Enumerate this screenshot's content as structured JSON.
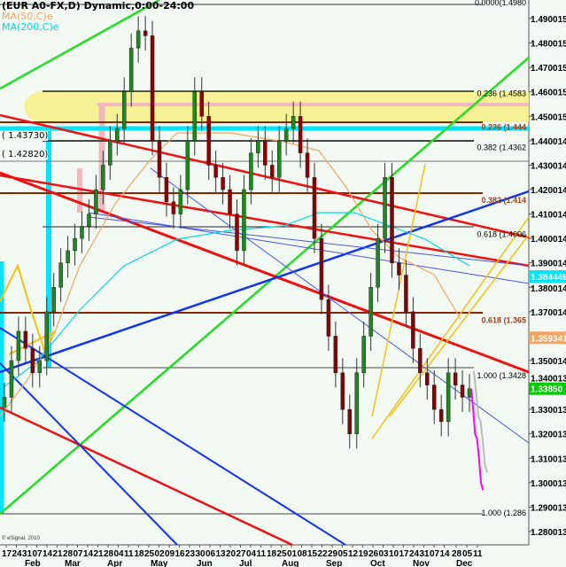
{
  "header": {
    "title": "(EUR A0-FX,D) Dynamic,0:00-24:00",
    "ma50": "MA(50,C)e",
    "ma200": "MA(200,C)e",
    "ma50_color": "#f4a460",
    "ma200_color": "#00d8e8"
  },
  "copyright": "© eSignal, 2010",
  "chart_data": {
    "type": "candlestick",
    "ylim": [
      1.275,
      1.4975
    ],
    "y_ticks": [
      "1.490015",
      "1.480015",
      "1.470015",
      "1.460015",
      "1.450015",
      "1.440014",
      "1.430014",
      "1.420014",
      "1.410014",
      "1.400014",
      "1.390014",
      "1.380014",
      "1.370014",
      "1.359341",
      "1.350014",
      "1.340013",
      "1.330013",
      "1.320013",
      "1.310013",
      "1.300013",
      "1.290013",
      "1.280013"
    ],
    "y_tick_values": [
      1.490015,
      1.480015,
      1.470015,
      1.460015,
      1.450015,
      1.440014,
      1.430014,
      1.420014,
      1.410014,
      1.400014,
      1.390014,
      1.380014,
      1.370014,
      1.359341,
      1.350014,
      1.340013,
      1.330013,
      1.320013,
      1.310013,
      1.300013,
      1.290013,
      1.280013
    ],
    "x_ticks": [
      "17",
      "24",
      "31",
      "07",
      "14",
      "21",
      "28",
      "07",
      "14",
      "21",
      "28",
      "04",
      "11",
      "18",
      "25",
      "02",
      "09",
      "16",
      "23",
      "30",
      "06",
      "13",
      "20",
      "27",
      "04",
      "11",
      "18",
      "25",
      "01",
      "08",
      "15",
      "22",
      "29",
      "05",
      "12",
      "19",
      "26",
      "03",
      "10",
      "17",
      "24",
      "31",
      "07",
      "14",
      "28",
      "05",
      "11"
    ],
    "months": [
      "Feb",
      "Mar",
      "Apr",
      "May",
      "Jun",
      "Jul",
      "Aug",
      "Sep",
      "Oct",
      "Nov",
      "Dec"
    ],
    "closes": [
      1.335,
      1.35,
      1.362,
      1.355,
      1.345,
      1.35,
      1.37,
      1.38,
      1.39,
      1.395,
      1.4,
      1.405,
      1.41,
      1.42,
      1.43,
      1.44,
      1.445,
      1.46,
      1.478,
      1.485,
      1.483,
      1.44,
      1.425,
      1.415,
      1.41,
      1.42,
      1.44,
      1.46,
      1.45,
      1.43,
      1.425,
      1.42,
      1.41,
      1.395,
      1.42,
      1.435,
      1.44,
      1.43,
      1.425,
      1.44,
      1.445,
      1.45,
      1.435,
      1.425,
      1.4,
      1.375,
      1.36,
      1.345,
      1.33,
      1.32,
      1.345,
      1.36,
      1.38,
      1.4,
      1.425,
      1.39,
      1.385,
      1.37,
      1.355,
      1.345,
      1.34,
      1.33,
      1.325,
      1.345,
      1.34,
      1.335,
      1.3385
    ],
    "badges": [
      {
        "label": "1.384449",
        "value": 1.384449,
        "color": "#00e5ff"
      },
      {
        "label": "1.359341",
        "value": 1.359341,
        "color": "#f4a460"
      },
      {
        "label": "1.33850",
        "value": 1.3385,
        "color": "#00cc00"
      }
    ],
    "fib_labels": [
      {
        "text": "0.0000(1.4980",
        "value": 1.4955,
        "color": "#000000"
      },
      {
        "text": "0.236 (1.4583",
        "value": 1.4583,
        "color": "#000000"
      },
      {
        "text": "0.236 (1.444",
        "value": 1.4445,
        "color": "#a0401a"
      },
      {
        "text": "0.382 (1.4362",
        "value": 1.4362,
        "color": "#000000"
      },
      {
        "text": "0.382 (1.414",
        "value": 1.4145,
        "color": "#a0401a"
      },
      {
        "text": "0.618 (1.4006",
        "value": 1.4006,
        "color": "#000000"
      },
      {
        "text": "0.618 (1.365",
        "value": 1.3655,
        "color": "#a0401a"
      },
      {
        "text": "1.000 (1.3428",
        "value": 1.3428,
        "color": "#000000"
      },
      {
        "text": "1.000 (1.286",
        "value": 1.2866,
        "color": "#000000"
      }
    ],
    "left_labels": [
      "( 1.43730)",
      "( 1.42820)"
    ],
    "projection": [
      1.3385,
      1.33,
      1.32,
      1.318,
      1.31,
      1.3,
      1.297
    ]
  }
}
